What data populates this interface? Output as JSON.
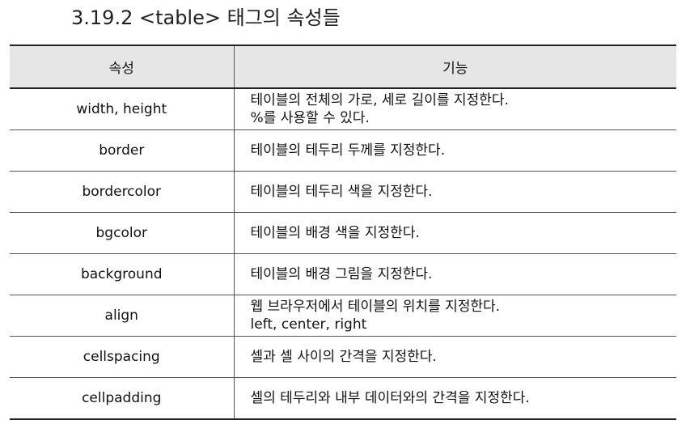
{
  "title": "3.19.2 <table> 태그의 속성들",
  "table": {
    "headers": [
      "속성",
      "기능"
    ],
    "rows": [
      {
        "name": "width, height",
        "lines": [
          "테이블의 전체의 가로, 세로 길이를 지정한다.",
          "%를 사용할 수 있다."
        ]
      },
      {
        "name": "border",
        "lines": [
          "테이블의 테두리 두께를 지정한다."
        ]
      },
      {
        "name": "bordercolor",
        "lines": [
          "테이블의 테두리 색을 지정한다."
        ]
      },
      {
        "name": "bgcolor",
        "lines": [
          "테이블의 배경 색을 지정한다."
        ]
      },
      {
        "name": "background",
        "lines": [
          "테이블의 배경 그림을 지정한다."
        ]
      },
      {
        "name": "align",
        "lines": [
          "웹 브라우저에서 테이블의 위치를 지정한다.",
          "left, center, right"
        ]
      },
      {
        "name": "cellspacing",
        "lines": [
          "셀과 셀 사이의 간격을 지정한다."
        ]
      },
      {
        "name": "cellpadding",
        "lines": [
          "셀의 테두리와 내부 데이터와의 간격을 지정한다."
        ]
      }
    ]
  }
}
